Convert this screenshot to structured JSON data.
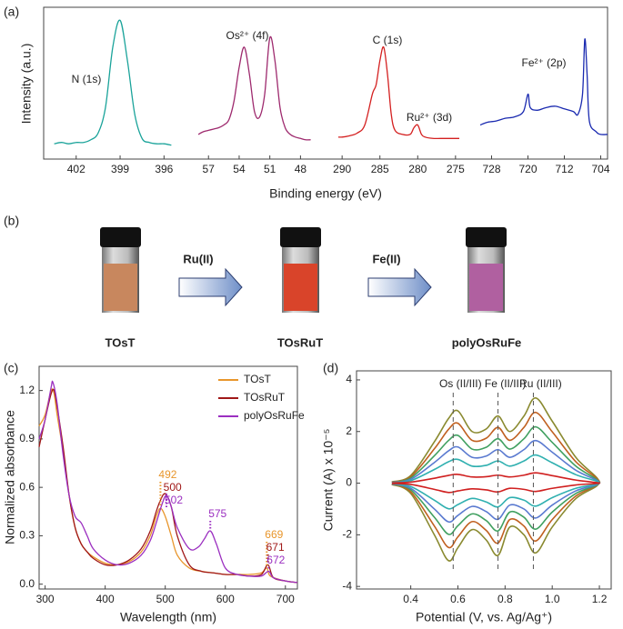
{
  "chart_data": [
    {
      "type": "line",
      "panel": "(a)",
      "xlabel": "Binding energy (eV)",
      "ylabel": "Intensity (a.u.)",
      "color": "#1aa39a",
      "annotations": [
        "N (1s)"
      ],
      "x": [
        403.5,
        403,
        402.5,
        402,
        401.5,
        401,
        400.5,
        400,
        399.5,
        399,
        398.5,
        398,
        397.5,
        397,
        396.5,
        396,
        395.5
      ],
      "values": [
        8,
        9,
        8,
        9,
        9,
        11,
        16,
        35,
        80,
        100,
        70,
        30,
        12,
        9,
        8,
        8,
        7
      ],
      "xlim": [
        403.6,
        395.4
      ],
      "ylim": [
        0,
        105
      ],
      "xticks": [
        402,
        399,
        396
      ]
    },
    {
      "type": "line",
      "color": "#9e2a6e",
      "annotations": [
        "Os²⁺ (4f)"
      ],
      "x": [
        58,
        57.5,
        57,
        56.5,
        56,
        55.5,
        55,
        54.5,
        54,
        53.5,
        53,
        52.5,
        52,
        51.5,
        51,
        50.5,
        50,
        49.5,
        49,
        48.5,
        48,
        47.5,
        47
      ],
      "values": [
        15,
        17,
        18,
        19,
        20,
        22,
        26,
        40,
        65,
        80,
        60,
        32,
        28,
        45,
        87,
        70,
        35,
        20,
        15,
        13,
        12,
        11,
        11
      ],
      "xlim": [
        58,
        46.7
      ],
      "ylim": [
        0,
        105
      ],
      "xticks": [
        57,
        54,
        51,
        48
      ]
    },
    {
      "type": "line",
      "color": "#d42020",
      "annotations": [
        "C (1s)",
        "Ru²⁺ (3d)"
      ],
      "x": [
        290.5,
        290,
        289,
        288,
        287,
        286,
        285.5,
        285,
        284.5,
        284,
        283.5,
        283,
        282,
        281,
        280.5,
        280,
        279.5,
        279,
        278,
        277,
        276,
        275,
        274.5
      ],
      "values": [
        13,
        13,
        14,
        16,
        22,
        45,
        52,
        70,
        80,
        60,
        30,
        18,
        15,
        15,
        20,
        22,
        15,
        13,
        12,
        12,
        12,
        12,
        12
      ],
      "xlim": [
        290.5,
        274.5
      ],
      "ylim": [
        0,
        105
      ],
      "xticks": [
        290,
        285,
        280,
        275
      ]
    },
    {
      "type": "line",
      "color": "#1a2ab0",
      "annotations": [
        "Fe²⁺ (2p)"
      ],
      "x": [
        730.5,
        729,
        727,
        725,
        723,
        721,
        720,
        719.5,
        718,
        716,
        714,
        712,
        710,
        709,
        708,
        707.5,
        707,
        706.5,
        705,
        704,
        702.5
      ],
      "values": [
        22,
        24,
        25,
        27,
        28,
        32,
        45,
        35,
        33,
        35,
        36,
        34,
        32,
        30,
        45,
        86,
        60,
        25,
        17,
        15,
        15
      ],
      "xlim": [
        730.5,
        702.5
      ],
      "ylim": [
        0,
        105
      ],
      "xticks": [
        728,
        720,
        712,
        704
      ]
    },
    {
      "type": "line",
      "panel": "(c)",
      "xlabel": "Wavelength (nm)",
      "ylabel": "Normalized absorbance",
      "xlim": [
        290,
        720
      ],
      "ylim": [
        -0.03,
        1.35
      ],
      "xticks": [
        300,
        400,
        500,
        600,
        700
      ],
      "yticks": [
        {
          "value": 0,
          "label": "0.0"
        },
        0.3,
        0.6,
        0.9,
        1.2
      ],
      "series": [
        {
          "name": "TOsT",
          "color": "#e8962c",
          "x": [
            290,
            300,
            310,
            315,
            320,
            330,
            340,
            350,
            360,
            370,
            380,
            400,
            420,
            440,
            460,
            475,
            485,
            492,
            500,
            510,
            520,
            540,
            560,
            580,
            600,
            620,
            640,
            660,
            669,
            675,
            700,
            720
          ],
          "values": [
            0.98,
            1.05,
            1.2,
            1.18,
            1.05,
            0.82,
            0.55,
            0.35,
            0.25,
            0.2,
            0.17,
            0.13,
            0.12,
            0.14,
            0.2,
            0.3,
            0.42,
            0.47,
            0.42,
            0.3,
            0.18,
            0.1,
            0.08,
            0.07,
            0.06,
            0.06,
            0.06,
            0.07,
            0.1,
            0.05,
            0.02,
            0.01
          ]
        },
        {
          "name": "TOsRuT",
          "color": "#a01818",
          "x": [
            290,
            300,
            310,
            315,
            320,
            330,
            340,
            350,
            360,
            370,
            380,
            400,
            420,
            440,
            460,
            475,
            485,
            492,
            500,
            510,
            520,
            540,
            560,
            580,
            600,
            620,
            640,
            660,
            671,
            680,
            700,
            720
          ],
          "values": [
            0.85,
            1.02,
            1.18,
            1.2,
            1.1,
            0.85,
            0.55,
            0.35,
            0.25,
            0.2,
            0.16,
            0.12,
            0.12,
            0.15,
            0.22,
            0.33,
            0.45,
            0.52,
            0.56,
            0.48,
            0.3,
            0.12,
            0.08,
            0.07,
            0.06,
            0.06,
            0.05,
            0.06,
            0.12,
            0.04,
            0.02,
            0.01
          ]
        },
        {
          "name": "polyOsRuFe",
          "color": "#9b2fc0",
          "x": [
            290,
            300,
            310,
            313,
            320,
            330,
            340,
            350,
            360,
            370,
            380,
            400,
            420,
            440,
            460,
            475,
            485,
            495,
            502,
            510,
            520,
            540,
            555,
            565,
            575,
            585,
            600,
            620,
            640,
            660,
            672,
            680,
            700,
            720
          ],
          "values": [
            0.9,
            1.02,
            1.22,
            1.25,
            1.12,
            0.8,
            0.55,
            0.42,
            0.38,
            0.3,
            0.22,
            0.15,
            0.12,
            0.13,
            0.18,
            0.27,
            0.38,
            0.5,
            0.55,
            0.48,
            0.35,
            0.22,
            0.23,
            0.28,
            0.33,
            0.25,
            0.1,
            0.06,
            0.05,
            0.05,
            0.08,
            0.04,
            0.02,
            0.01
          ]
        }
      ],
      "peaks": [
        {
          "x": 492,
          "y": 0.47,
          "color": "#e8962c"
        },
        {
          "x": 500,
          "y": 0.56,
          "color": "#a01818"
        },
        {
          "x": 502,
          "y": 0.55,
          "color": "#9b2fc0"
        },
        {
          "x": 575,
          "y": 0.33,
          "color": "#9b2fc0"
        },
        {
          "x": 669,
          "y": 0.1,
          "color": "#e8962c"
        },
        {
          "x": 671,
          "y": 0.12,
          "color": "#a01818"
        },
        {
          "x": 672,
          "y": 0.08,
          "color": "#9b2fc0"
        }
      ]
    },
    {
      "type": "line",
      "panel": "(d)",
      "xlabel": "Potential (V, vs. Ag/Ag⁺)",
      "ylabel": "Current (A) x 10⁻⁵",
      "xlim": [
        0.17,
        1.25
      ],
      "ylim": [
        -4.1,
        4.35
      ],
      "xticks": [
        0.4,
        0.6,
        0.8,
        {
          "value": 1,
          "label": "1.0"
        },
        1.2
      ],
      "yticks": [
        -4,
        -2,
        0,
        2,
        4
      ],
      "annotations": [
        {
          "text": "Os (II/III)",
          "x": 0.58
        },
        {
          "text": "Fe (II/III)",
          "x": 0.77
        },
        {
          "text": "Ru (II/III)",
          "x": 0.92
        }
      ],
      "x": [
        0.32,
        0.4,
        0.5,
        0.56,
        0.6,
        0.66,
        0.72,
        0.77,
        0.82,
        0.88,
        0.93,
        1.0,
        1.1,
        1.19,
        1.19,
        1.1,
        1.0,
        0.93,
        0.88,
        0.82,
        0.77,
        0.72,
        0.66,
        0.6,
        0.56,
        0.5,
        0.4,
        0.32
      ],
      "series": [
        {
          "color": "#8a8a30",
          "values": [
            0.05,
            0.3,
            1.6,
            2.5,
            2.8,
            2.0,
            2.1,
            2.6,
            2.0,
            2.6,
            3.3,
            2.4,
            1.0,
            0.2,
            -0.1,
            -0.6,
            -1.7,
            -2.7,
            -2.0,
            -1.7,
            -2.8,
            -2.2,
            -1.8,
            -2.5,
            -3.0,
            -2.0,
            -0.4,
            -0.05
          ]
        },
        {
          "color": "#c06020",
          "values": [
            0.04,
            0.25,
            1.33,
            2.08,
            2.32,
            1.66,
            1.74,
            2.16,
            1.66,
            2.16,
            2.74,
            1.99,
            0.83,
            0.17,
            -0.08,
            -0.5,
            -1.41,
            -2.24,
            -1.66,
            -1.41,
            -2.32,
            -1.83,
            -1.49,
            -2.08,
            -2.49,
            -1.66,
            -0.33,
            -0.04
          ]
        },
        {
          "color": "#40a060",
          "values": [
            0.03,
            0.2,
            1.06,
            1.65,
            1.85,
            1.32,
            1.39,
            1.72,
            1.32,
            1.72,
            2.18,
            1.58,
            0.66,
            0.13,
            -0.07,
            -0.4,
            -1.12,
            -1.78,
            -1.32,
            -1.12,
            -1.85,
            -1.45,
            -1.19,
            -1.65,
            -1.98,
            -1.32,
            -0.26,
            -0.03
          ]
        },
        {
          "color": "#5a7ad0",
          "values": [
            0.03,
            0.15,
            0.8,
            1.25,
            1.4,
            1.0,
            1.05,
            1.3,
            1.0,
            1.3,
            1.65,
            1.2,
            0.5,
            0.1,
            -0.05,
            -0.3,
            -0.85,
            -1.35,
            -1.0,
            -0.85,
            -1.4,
            -1.1,
            -0.9,
            -1.25,
            -1.5,
            -1.0,
            -0.2,
            -0.03
          ]
        },
        {
          "color": "#30b0b0",
          "values": [
            0.02,
            0.1,
            0.53,
            0.83,
            0.92,
            0.66,
            0.69,
            0.86,
            0.66,
            0.86,
            1.09,
            0.79,
            0.33,
            0.07,
            -0.03,
            -0.2,
            -0.56,
            -0.89,
            -0.66,
            -0.56,
            -0.92,
            -0.73,
            -0.59,
            -0.83,
            -0.99,
            -0.66,
            -0.13,
            -0.02
          ]
        },
        {
          "color": "#d02020",
          "values": [
            0.01,
            0.04,
            0.19,
            0.3,
            0.34,
            0.24,
            0.25,
            0.31,
            0.24,
            0.31,
            0.4,
            0.29,
            0.12,
            0.02,
            -0.01,
            -0.07,
            -0.2,
            -0.32,
            -0.24,
            -0.2,
            -0.34,
            -0.26,
            -0.22,
            -0.3,
            -0.36,
            -0.24,
            -0.05,
            -0.01
          ]
        }
      ]
    }
  ],
  "panel_b": {
    "label": "(b)",
    "samples": [
      "TOsT",
      "TOsRuT",
      "polyOsRuFe"
    ],
    "reagents": [
      "Ru(II)",
      "Fe(II)"
    ]
  }
}
